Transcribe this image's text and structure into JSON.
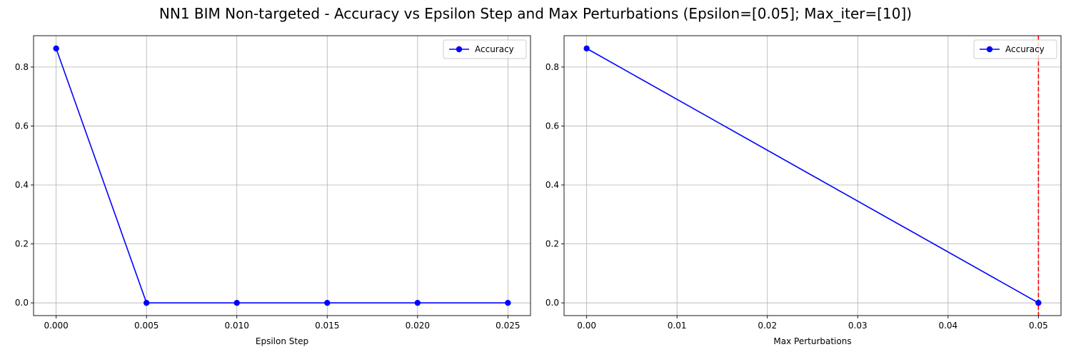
{
  "figure": {
    "title": "NN1 BIM Non-targeted - Accuracy vs Epsilon Step and Max Perturbations (Epsilon=[0.05]; Max_iter=[10])"
  },
  "chart_data": [
    {
      "type": "line",
      "xlabel": "Epsilon Step",
      "ylabel": "",
      "x": [
        0.0,
        0.005,
        0.01,
        0.015,
        0.02,
        0.025
      ],
      "series": [
        {
          "name": "Accuracy",
          "values": [
            0.863,
            0.0,
            0.0,
            0.0,
            0.0,
            0.0
          ],
          "color": "#0000ff",
          "marker": "circle"
        }
      ],
      "xticks": [
        0.0,
        0.005,
        0.01,
        0.015,
        0.02,
        0.025
      ],
      "xtick_labels": [
        "0.000",
        "0.005",
        "0.010",
        "0.015",
        "0.020",
        "0.025"
      ],
      "yticks": [
        0.0,
        0.2,
        0.4,
        0.6,
        0.8
      ],
      "ytick_labels": [
        "0.0",
        "0.2",
        "0.4",
        "0.6",
        "0.8"
      ],
      "xlim": [
        -0.00125,
        0.02625
      ],
      "ylim": [
        -0.0432,
        0.9063
      ],
      "grid": true,
      "legend_position": "top-right"
    },
    {
      "type": "line",
      "xlabel": "Max Perturbations",
      "ylabel": "",
      "x": [
        0.0,
        0.05
      ],
      "series": [
        {
          "name": "Accuracy",
          "values": [
            0.863,
            0.0
          ],
          "color": "#0000ff",
          "marker": "circle"
        }
      ],
      "xticks": [
        0.0,
        0.01,
        0.02,
        0.03,
        0.04,
        0.05
      ],
      "xtick_labels": [
        "0.00",
        "0.01",
        "0.02",
        "0.03",
        "0.04",
        "0.05"
      ],
      "yticks": [
        0.0,
        0.2,
        0.4,
        0.6,
        0.8
      ],
      "ytick_labels": [
        "0.0",
        "0.2",
        "0.4",
        "0.6",
        "0.8"
      ],
      "xlim": [
        -0.0025,
        0.0525
      ],
      "ylim": [
        -0.0432,
        0.9063
      ],
      "grid": true,
      "legend_position": "top-right",
      "reference_line": {
        "axis": "x",
        "value": 0.05,
        "color": "#ff0000",
        "style": "dashed"
      }
    }
  ]
}
